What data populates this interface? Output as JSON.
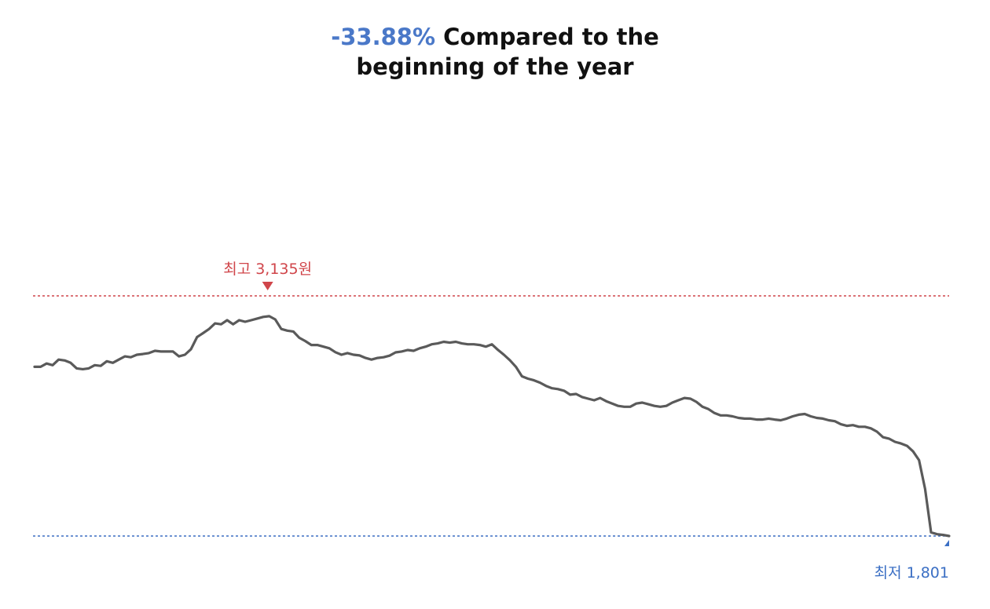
{
  "title": {
    "change": "-33.88%",
    "line1_rest": "Compared to the",
    "line2": "beginning of the year"
  },
  "chart_data": {
    "type": "line",
    "title": "-33.88% Compared to the beginning of the year",
    "xlabel": "",
    "ylabel": "",
    "ylim": [
      1801,
      3135
    ],
    "grid": false,
    "series": [
      {
        "values": [
          2741,
          2741,
          2759,
          2750,
          2781,
          2776,
          2763,
          2732,
          2728,
          2732,
          2750,
          2746,
          2772,
          2763,
          2781,
          2799,
          2794,
          2808,
          2812,
          2817,
          2830,
          2826,
          2826,
          2826,
          2799,
          2808,
          2839,
          2906,
          2928,
          2951,
          2982,
          2977,
          3000,
          2977,
          3000,
          2991,
          3000,
          3009,
          3018,
          3022,
          3004,
          2951,
          2942,
          2937,
          2902,
          2884,
          2862,
          2862,
          2853,
          2844,
          2822,
          2808,
          2817,
          2808,
          2804,
          2790,
          2781,
          2790,
          2794,
          2803,
          2821,
          2826,
          2834,
          2830,
          2844,
          2853,
          2866,
          2871,
          2880,
          2875,
          2880,
          2871,
          2866,
          2866,
          2862,
          2853,
          2866,
          2835,
          2808,
          2777,
          2741,
          2688,
          2675,
          2666,
          2653,
          2635,
          2622,
          2617,
          2608,
          2586,
          2590,
          2573,
          2564,
          2555,
          2568,
          2550,
          2537,
          2524,
          2519,
          2519,
          2537,
          2542,
          2533,
          2524,
          2519,
          2524,
          2542,
          2555,
          2568,
          2564,
          2546,
          2519,
          2506,
          2484,
          2471,
          2471,
          2466,
          2457,
          2453,
          2453,
          2448,
          2448,
          2453,
          2448,
          2444,
          2453,
          2466,
          2475,
          2479,
          2466,
          2457,
          2453,
          2444,
          2439,
          2422,
          2413,
          2417,
          2408,
          2408,
          2399,
          2381,
          2350,
          2342,
          2324,
          2315,
          2302,
          2271,
          2222,
          2062,
          1821,
          1811,
          1807,
          1801
        ]
      }
    ],
    "annotations": {
      "high": {
        "label": "최고 3,135원",
        "value": 3135
      },
      "low": {
        "label": "최저 1,801",
        "value": 1801
      }
    },
    "colors": {
      "line": "#5a5a5a",
      "high": "#d0454a",
      "low": "#3b6fc4",
      "title_change": "#4a78c8"
    }
  }
}
